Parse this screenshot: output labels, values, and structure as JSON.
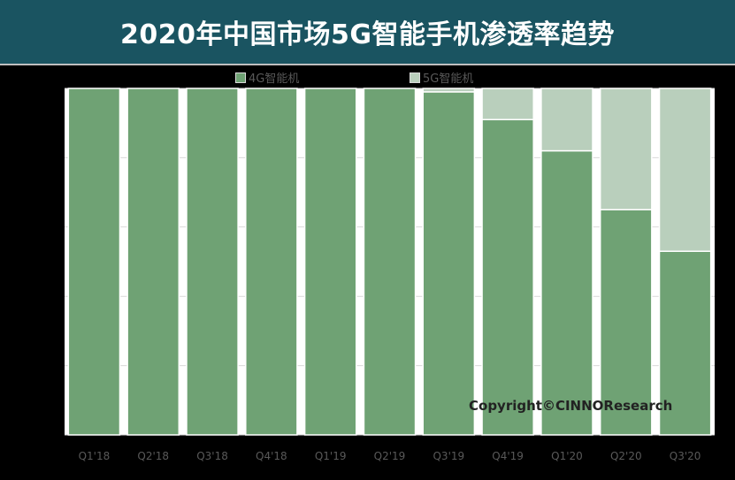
{
  "title": "2020年中国市场5G智能手机渗透率趋势",
  "copyright": "Copyright©CINNOResearch",
  "colors": {
    "title_bg": "#1a5461",
    "series_4g": "#6fa274",
    "series_5g": "#b9cfbc",
    "plot_bg": "#ffffff",
    "bar_border": "#ffffff"
  },
  "chart_data": {
    "type": "bar",
    "stacked": true,
    "percent_stacked": true,
    "categories": [
      "Q1'18",
      "Q2'18",
      "Q3'18",
      "Q4'18",
      "Q1'19",
      "Q2'19",
      "Q3'19",
      "Q4'19",
      "Q1'20",
      "Q2'20",
      "Q3'20"
    ],
    "series": [
      {
        "name": "4G智能机",
        "values": [
          100,
          100,
          100,
          100,
          100,
          100,
          99,
          91,
          82,
          65,
          53
        ]
      },
      {
        "name": "5G智能机",
        "values": [
          0,
          0,
          0,
          0,
          0,
          0,
          1,
          9,
          18,
          35,
          47
        ]
      }
    ],
    "ylim": [
      0,
      100
    ],
    "grid": true,
    "legend": "top-center"
  }
}
